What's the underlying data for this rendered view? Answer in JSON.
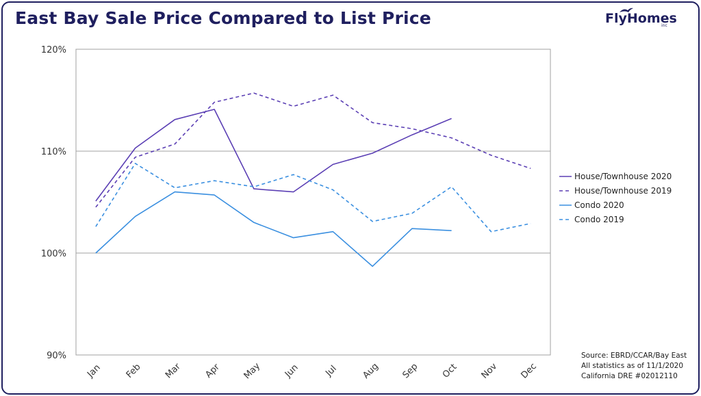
{
  "header": {
    "title": "East Bay Sale Price Compared to List Price",
    "logo_text": "FlyHomes",
    "logo_suffix": "inc"
  },
  "footer": {
    "source_lines": [
      "Source: EBRD/CCAR/Bay East",
      "All statistics as of 11/1/2020",
      "California DRE #02012110"
    ]
  },
  "colors": {
    "house": "#5b3fb4",
    "condo": "#3a8fe0",
    "title": "#1f1f5f"
  },
  "chart_data": {
    "type": "line",
    "categories": [
      "Jan",
      "Feb",
      "Mar",
      "Apr",
      "May",
      "Jun",
      "Jul",
      "Aug",
      "Sep",
      "Oct",
      "Nov",
      "Dec"
    ],
    "ylim": [
      90,
      120
    ],
    "yticks": [
      90,
      100,
      110,
      120
    ],
    "ytick_labels": [
      "90%",
      "100%",
      "110%",
      "120%"
    ],
    "grid": "horizontal",
    "legend_position": "right",
    "series": [
      {
        "name": "House/Townhouse 2020",
        "color": "#5b3fb4",
        "dash": "solid",
        "values": [
          105.1,
          110.3,
          113.1,
          114.1,
          106.3,
          106.0,
          108.7,
          109.8,
          111.6,
          113.2,
          null,
          null
        ]
      },
      {
        "name": "House/Townhouse 2019",
        "color": "#5b3fb4",
        "dash": "dashed",
        "values": [
          104.5,
          109.4,
          110.7,
          114.8,
          115.7,
          114.4,
          115.5,
          112.8,
          112.2,
          111.3,
          109.6,
          108.3
        ]
      },
      {
        "name": "Condo 2020",
        "color": "#3a8fe0",
        "dash": "solid",
        "values": [
          100.0,
          103.6,
          106.0,
          105.7,
          103.0,
          101.5,
          102.1,
          98.7,
          102.4,
          102.2,
          null,
          null
        ]
      },
      {
        "name": "Condo 2019",
        "color": "#3a8fe0",
        "dash": "dashed",
        "values": [
          102.6,
          108.8,
          106.4,
          107.1,
          106.5,
          107.7,
          106.2,
          103.1,
          103.9,
          106.5,
          102.1,
          102.9
        ]
      }
    ]
  }
}
